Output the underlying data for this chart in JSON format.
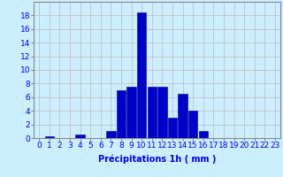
{
  "categories": [
    0,
    1,
    2,
    3,
    4,
    5,
    6,
    7,
    8,
    9,
    10,
    11,
    12,
    13,
    14,
    15,
    16,
    17,
    18,
    19,
    20,
    21,
    22,
    23
  ],
  "values": [
    0,
    0.2,
    0,
    0,
    0.5,
    0,
    0,
    1.0,
    7.0,
    7.5,
    18.5,
    7.5,
    7.5,
    3.0,
    6.5,
    4.0,
    1.0,
    0,
    0,
    0,
    0,
    0,
    0,
    0
  ],
  "bar_color": "#0000cc",
  "bar_edge_color": "#000080",
  "background_color": "#cceeff",
  "grid_color": "#bbbbbb",
  "xlabel": "Précipitations 1h ( mm )",
  "ylim": [
    0,
    20
  ],
  "yticks": [
    0,
    2,
    4,
    6,
    8,
    10,
    12,
    14,
    16,
    18
  ],
  "xlabel_fontsize": 7,
  "tick_fontsize": 6.5
}
